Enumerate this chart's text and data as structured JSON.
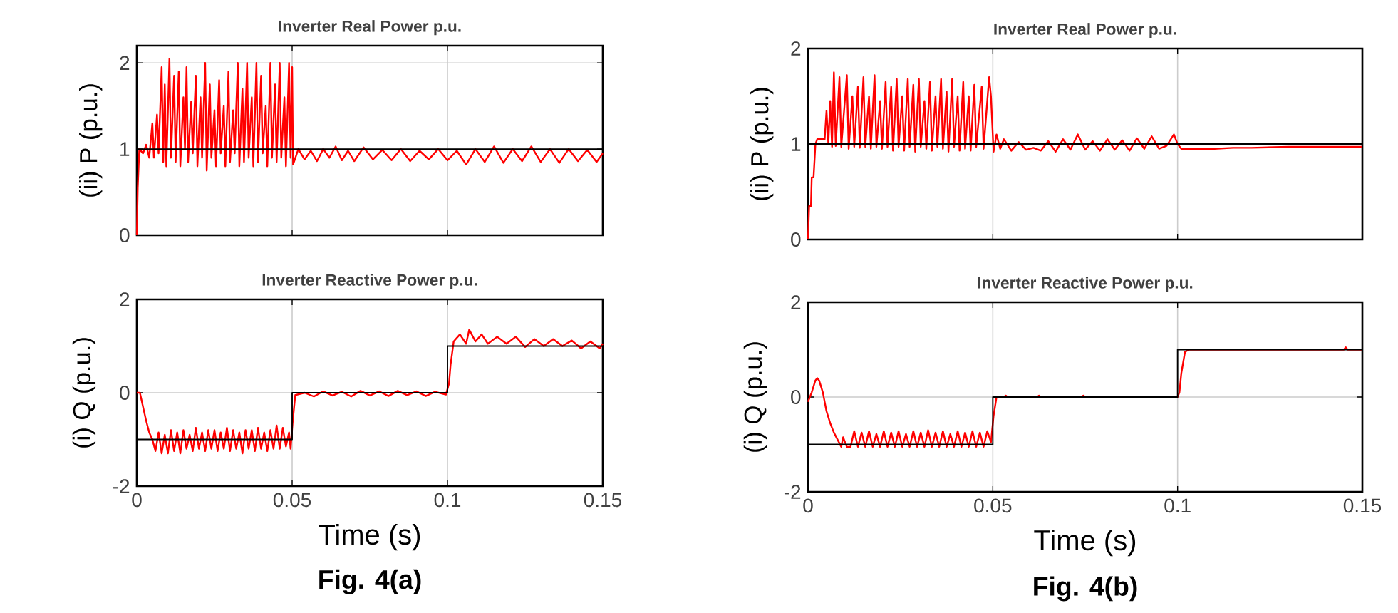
{
  "chart_data": [
    {
      "type": "line",
      "title": "Inverter Real Power p.u.",
      "ylabel": "(ii) P (p.u.)",
      "xlim": [
        0,
        0.15
      ],
      "ylim": [
        0,
        2.2
      ],
      "xticks": [
        0,
        0.05,
        0.1,
        0.15
      ],
      "yticks": [
        0,
        1,
        2
      ],
      "grid": true,
      "tick_labels": "y",
      "series": [
        {
          "type": "line",
          "color": "#ff0000",
          "x": [
            0,
            0.0003,
            0.0008,
            0.002,
            0.003,
            0.004,
            0.005,
            0.0055,
            0.0065,
            0.007,
            0.008,
            0.0085,
            0.009,
            0.0095,
            0.0105,
            0.011,
            0.012,
            0.0125,
            0.0135,
            0.014,
            0.015,
            0.0155,
            0.016,
            0.0165,
            0.0175,
            0.018,
            0.019,
            0.0195,
            0.0205,
            0.021,
            0.022,
            0.0225,
            0.0235,
            0.024,
            0.025,
            0.0255,
            0.0265,
            0.027,
            0.028,
            0.0285,
            0.0295,
            0.03,
            0.031,
            0.0315,
            0.0325,
            0.033,
            0.034,
            0.0345,
            0.0355,
            0.036,
            0.037,
            0.0375,
            0.0385,
            0.039,
            0.04,
            0.0405,
            0.0415,
            0.042,
            0.043,
            0.0435,
            0.0445,
            0.045,
            0.046,
            0.0465,
            0.0475,
            0.048,
            0.049,
            0.0495,
            0.05,
            0.0503,
            0.052,
            0.054,
            0.056,
            0.058,
            0.06,
            0.062,
            0.064,
            0.066,
            0.068,
            0.07,
            0.073,
            0.076,
            0.079,
            0.082,
            0.085,
            0.088,
            0.091,
            0.094,
            0.097,
            0.1,
            0.103,
            0.106,
            0.109,
            0.112,
            0.115,
            0.118,
            0.121,
            0.124,
            0.127,
            0.13,
            0.133,
            0.136,
            0.139,
            0.142,
            0.145,
            0.148,
            0.15
          ],
          "values": [
            0,
            0.55,
            1.0,
            0.95,
            1.05,
            0.9,
            1.3,
            0.9,
            1.4,
            0.95,
            1.95,
            0.85,
            1.75,
            0.8,
            2.05,
            0.9,
            1.85,
            0.85,
            1.9,
            0.8,
            1.6,
            1.0,
            1.95,
            0.85,
            1.55,
            0.95,
            1.85,
            0.8,
            1.6,
            0.9,
            2.0,
            0.75,
            1.75,
            0.9,
            1.45,
            0.8,
            1.8,
            0.95,
            1.5,
            0.8,
            1.9,
            0.85,
            1.45,
            0.95,
            2.0,
            0.8,
            1.7,
            0.85,
            2.0,
            0.9,
            1.6,
            0.8,
            2.0,
            0.85,
            1.85,
            0.95,
            1.5,
            0.8,
            2.0,
            0.9,
            1.75,
            0.85,
            2.0,
            0.9,
            1.6,
            0.8,
            2.0,
            0.9,
            1.95,
            0.82,
            1.0,
            0.88,
            0.98,
            0.86,
            1.0,
            0.9,
            1.03,
            0.87,
            0.98,
            0.86,
            1.02,
            0.88,
            0.99,
            0.87,
            1.0,
            0.86,
            0.98,
            0.88,
            1.0,
            0.87,
            0.98,
            0.82,
            1.0,
            0.85,
            1.03,
            0.84,
            1.0,
            0.86,
            1.03,
            0.85,
            1.0,
            0.84,
            1.0,
            0.86,
            0.99,
            0.85,
            0.95
          ]
        },
        {
          "type": "step",
          "color": "#000000",
          "x": [
            0,
            0.15
          ],
          "values": [
            1,
            1
          ]
        }
      ]
    },
    {
      "type": "line",
      "title": "Inverter Real Power p.u.",
      "ylabel": "(ii) P (p.u.)",
      "xlim": [
        0,
        0.15
      ],
      "ylim": [
        0,
        2
      ],
      "xticks": [
        0,
        0.05,
        0.1,
        0.15
      ],
      "yticks": [
        0,
        1,
        2
      ],
      "grid": true,
      "tick_labels": "y",
      "series": [
        {
          "type": "line",
          "color": "#ff0000",
          "x": [
            0,
            0.0003,
            0.0008,
            0.001,
            0.0015,
            0.002,
            0.0025,
            0.0045,
            0.005,
            0.0055,
            0.006,
            0.0065,
            0.007,
            0.0075,
            0.0085,
            0.009,
            0.0105,
            0.011,
            0.012,
            0.0125,
            0.0135,
            0.014,
            0.015,
            0.0155,
            0.0165,
            0.017,
            0.018,
            0.0185,
            0.0195,
            0.02,
            0.021,
            0.0215,
            0.0225,
            0.023,
            0.024,
            0.0245,
            0.0255,
            0.026,
            0.027,
            0.0275,
            0.0285,
            0.029,
            0.03,
            0.0305,
            0.0315,
            0.032,
            0.033,
            0.0335,
            0.0345,
            0.035,
            0.036,
            0.0365,
            0.0375,
            0.038,
            0.039,
            0.0395,
            0.0405,
            0.041,
            0.042,
            0.0425,
            0.0435,
            0.044,
            0.045,
            0.0455,
            0.047,
            0.0475,
            0.049,
            0.0495,
            0.0502,
            0.051,
            0.052,
            0.053,
            0.055,
            0.057,
            0.059,
            0.061,
            0.063,
            0.065,
            0.067,
            0.069,
            0.071,
            0.073,
            0.075,
            0.077,
            0.079,
            0.081,
            0.083,
            0.085,
            0.087,
            0.089,
            0.091,
            0.093,
            0.095,
            0.097,
            0.099,
            0.1,
            0.101,
            0.105,
            0.11,
            0.115,
            0.12,
            0.13,
            0.14,
            0.15
          ],
          "values": [
            0,
            0.35,
            0.35,
            0.65,
            0.65,
            1.0,
            1.05,
            1.05,
            1.35,
            1.0,
            1.45,
            0.97,
            1.75,
            0.98,
            1.7,
            0.97,
            1.72,
            0.95,
            1.5,
            0.97,
            1.6,
            0.96,
            1.7,
            0.97,
            1.5,
            0.95,
            1.72,
            0.97,
            1.45,
            0.95,
            1.65,
            0.97,
            1.6,
            0.93,
            1.68,
            0.97,
            1.5,
            0.93,
            1.68,
            0.97,
            1.62,
            0.92,
            1.68,
            0.97,
            1.45,
            0.95,
            1.65,
            0.93,
            1.5,
            0.97,
            1.68,
            0.95,
            1.55,
            0.92,
            1.68,
            0.97,
            1.5,
            0.93,
            1.65,
            0.95,
            1.5,
            0.93,
            1.62,
            0.97,
            1.6,
            0.95,
            1.7,
            1.5,
            0.92,
            1.1,
            0.95,
            1.05,
            0.93,
            1.02,
            0.94,
            0.96,
            0.93,
            1.03,
            0.92,
            1.05,
            0.94,
            1.1,
            0.94,
            1.03,
            0.93,
            1.05,
            0.94,
            1.04,
            0.93,
            1.06,
            0.95,
            1.08,
            0.95,
            0.98,
            1.1,
            1.0,
            0.95,
            0.95,
            0.95,
            0.96,
            0.96,
            0.97,
            0.97,
            0.97
          ]
        },
        {
          "type": "step",
          "color": "#000000",
          "x": [
            0,
            0.15
          ],
          "values": [
            1,
            1
          ]
        }
      ]
    },
    {
      "type": "line",
      "title": "Inverter Reactive Power p.u.",
      "ylabel": "(i) Q (p.u.)",
      "xlabel": "Time (s)",
      "annotations": [
        "Fig. 4(a)"
      ],
      "xlim": [
        0,
        0.15
      ],
      "ylim": [
        -2,
        2
      ],
      "xticks": [
        0,
        0.05,
        0.1,
        0.15
      ],
      "yticks": [
        -2,
        0,
        2
      ],
      "grid": true,
      "series": [
        {
          "type": "line",
          "color": "#ff0000",
          "x": [
            0,
            0.001,
            0.002,
            0.003,
            0.004,
            0.005,
            0.006,
            0.007,
            0.008,
            0.009,
            0.01,
            0.011,
            0.012,
            0.013,
            0.014,
            0.015,
            0.016,
            0.017,
            0.018,
            0.019,
            0.02,
            0.021,
            0.022,
            0.023,
            0.024,
            0.025,
            0.026,
            0.027,
            0.028,
            0.029,
            0.03,
            0.031,
            0.032,
            0.033,
            0.034,
            0.035,
            0.036,
            0.037,
            0.038,
            0.039,
            0.04,
            0.041,
            0.042,
            0.043,
            0.044,
            0.045,
            0.046,
            0.047,
            0.048,
            0.049,
            0.0495,
            0.0502,
            0.051,
            0.054,
            0.057,
            0.06,
            0.063,
            0.066,
            0.069,
            0.072,
            0.075,
            0.078,
            0.081,
            0.084,
            0.087,
            0.09,
            0.093,
            0.096,
            0.0995,
            0.1005,
            0.101,
            0.102,
            0.104,
            0.106,
            0.107,
            0.109,
            0.111,
            0.113,
            0.116,
            0.119,
            0.122,
            0.125,
            0.128,
            0.131,
            0.134,
            0.137,
            0.14,
            0.143,
            0.146,
            0.149,
            0.15
          ],
          "values": [
            0,
            0,
            -0.3,
            -0.6,
            -0.85,
            -1.0,
            -1.25,
            -0.85,
            -1.3,
            -0.9,
            -1.3,
            -0.8,
            -1.25,
            -0.85,
            -1.3,
            -0.8,
            -1.2,
            -0.9,
            -1.25,
            -0.75,
            -1.2,
            -0.85,
            -1.25,
            -0.8,
            -1.2,
            -0.8,
            -1.25,
            -0.85,
            -1.2,
            -0.75,
            -1.25,
            -0.8,
            -1.2,
            -0.85,
            -1.3,
            -0.8,
            -1.2,
            -0.8,
            -1.25,
            -0.75,
            -1.2,
            -0.85,
            -1.25,
            -0.8,
            -1.2,
            -0.7,
            -1.2,
            -0.75,
            -1.15,
            -0.85,
            -1.2,
            -0.6,
            -0.05,
            0.0,
            -0.08,
            0.03,
            -0.06,
            0.02,
            -0.08,
            0.04,
            -0.06,
            0.03,
            -0.07,
            0.04,
            -0.05,
            0.03,
            -0.07,
            0.02,
            -0.04,
            0.2,
            0.6,
            1.1,
            1.25,
            1.05,
            1.35,
            1.1,
            1.25,
            1.05,
            1.2,
            1.05,
            1.2,
            0.98,
            1.15,
            1.0,
            1.15,
            1.0,
            1.12,
            0.95,
            1.1,
            0.95,
            1.05
          ]
        },
        {
          "type": "step",
          "color": "#000000",
          "x": [
            0,
            0.05,
            0.1,
            0.15
          ],
          "values": [
            -1,
            0,
            1,
            1
          ]
        }
      ]
    },
    {
      "type": "line",
      "title": "Inverter Reactive Power p.u.",
      "ylabel": "(i) Q (p.u.)",
      "xlabel": "Time (s)",
      "annotations": [
        "Fig. 4(b)"
      ],
      "xlim": [
        0,
        0.15
      ],
      "ylim": [
        -2,
        2
      ],
      "xticks": [
        0,
        0.05,
        0.1,
        0.15
      ],
      "yticks": [
        -2,
        0,
        2
      ],
      "grid": true,
      "series": [
        {
          "type": "line",
          "color": "#ff0000",
          "x": [
            0,
            0.001,
            0.002,
            0.0025,
            0.003,
            0.004,
            0.005,
            0.006,
            0.007,
            0.008,
            0.009,
            0.0095,
            0.0105,
            0.0115,
            0.0125,
            0.0135,
            0.0145,
            0.0155,
            0.0165,
            0.0175,
            0.0185,
            0.0195,
            0.0205,
            0.0215,
            0.0225,
            0.0235,
            0.0245,
            0.0255,
            0.0265,
            0.0275,
            0.0285,
            0.0295,
            0.0305,
            0.0315,
            0.0325,
            0.0335,
            0.0345,
            0.0355,
            0.0365,
            0.0375,
            0.0385,
            0.0395,
            0.0405,
            0.0415,
            0.0425,
            0.0435,
            0.0445,
            0.0455,
            0.0465,
            0.0475,
            0.0485,
            0.0495,
            0.0502,
            0.051,
            0.053,
            0.0535,
            0.054,
            0.062,
            0.0625,
            0.063,
            0.074,
            0.0745,
            0.075,
            0.1,
            0.1005,
            0.101,
            0.102,
            0.103,
            0.145,
            0.1455,
            0.146,
            0.15
          ],
          "values": [
            -0.1,
            0.1,
            0.35,
            0.4,
            0.35,
            0.1,
            -0.3,
            -0.55,
            -0.75,
            -0.9,
            -1.05,
            -0.85,
            -1.05,
            -1.05,
            -0.72,
            -1.05,
            -0.75,
            -1.05,
            -0.72,
            -1.05,
            -0.78,
            -1.05,
            -0.72,
            -1.05,
            -0.75,
            -1.05,
            -0.72,
            -1.05,
            -0.78,
            -1.05,
            -0.72,
            -1.05,
            -0.75,
            -1.05,
            -0.7,
            -1.05,
            -0.75,
            -1.05,
            -0.72,
            -1.05,
            -0.78,
            -1.05,
            -0.72,
            -1.05,
            -0.75,
            -1.05,
            -0.72,
            -1.05,
            -0.75,
            -1.05,
            -0.72,
            -0.95,
            -0.4,
            0.0,
            0.0,
            0.03,
            0.0,
            0.0,
            0.03,
            0.0,
            0.0,
            0.03,
            0.0,
            0.0,
            0.1,
            0.5,
            0.95,
            1.0,
            1.0,
            1.05,
            1.0,
            1.0
          ]
        },
        {
          "type": "step",
          "color": "#000000",
          "x": [
            0,
            0.05,
            0.1,
            0.15
          ],
          "values": [
            -1,
            0,
            1,
            1
          ]
        }
      ]
    }
  ]
}
